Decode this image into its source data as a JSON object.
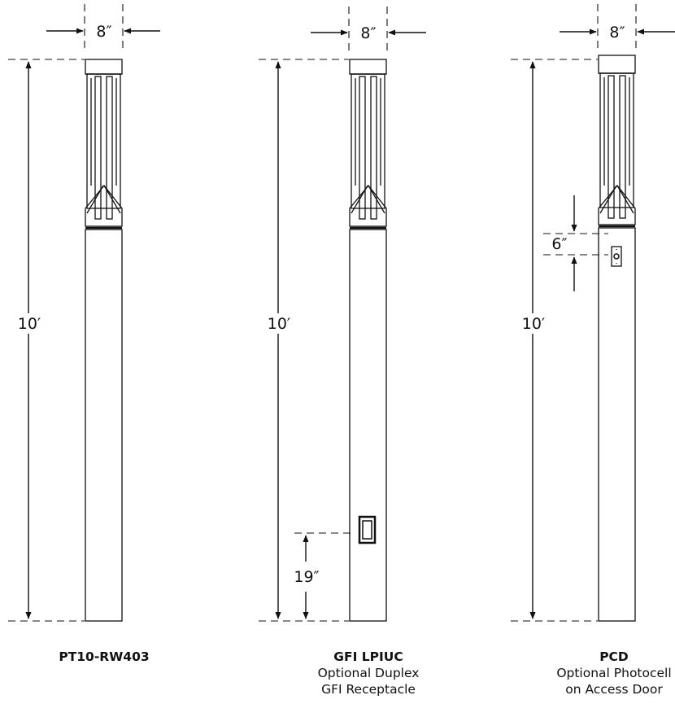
{
  "dimensions": {
    "width": "8″",
    "height": "10′",
    "gfi_offset": "19″",
    "pcd_offset": "6″"
  },
  "poles": [
    {
      "model": "PT10-RW403",
      "desc": []
    },
    {
      "model": "GFI LPIUC",
      "desc": [
        "Optional Duplex",
        "GFI Receptacle"
      ]
    },
    {
      "model": "PCD",
      "desc": [
        "Optional Photocell",
        "on Access Door"
      ]
    }
  ]
}
